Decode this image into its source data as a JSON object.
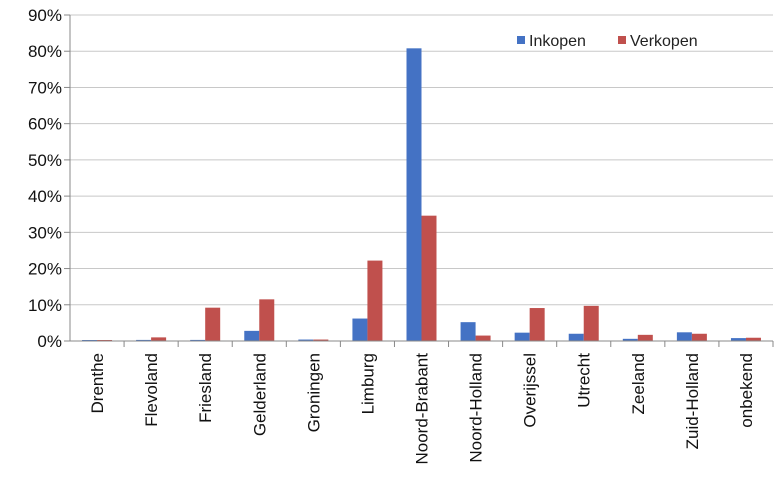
{
  "chart_data": {
    "type": "bar",
    "categories": [
      "Drenthe",
      "Flevoland",
      "Friesland",
      "Gelderland",
      "Groningen",
      "Limburg",
      "Noord-Brabant",
      "Noord-Holland",
      "Overijssel",
      "Utrecht",
      "Zeeland",
      "Zuid-Holland",
      "onbekend"
    ],
    "series": [
      {
        "name": "Inkopen",
        "values": [
          0.0,
          0.3,
          0.3,
          2.8,
          0.4,
          6.2,
          80.8,
          5.2,
          2.3,
          2.0,
          0.6,
          2.4,
          0.8
        ],
        "color": "#4472c4"
      },
      {
        "name": "Verkopen",
        "values": [
          0.2,
          1.0,
          9.2,
          11.5,
          0.4,
          22.2,
          34.6,
          1.5,
          9.1,
          9.7,
          1.7,
          2.0,
          0.9
        ],
        "color": "#c0504d"
      }
    ],
    "ylim": [
      0,
      90
    ],
    "yticks": [
      "0%",
      "10%",
      "20%",
      "30%",
      "40%",
      "50%",
      "60%",
      "70%",
      "80%",
      "90%"
    ],
    "grid": true,
    "legend_position": "top-right"
  }
}
